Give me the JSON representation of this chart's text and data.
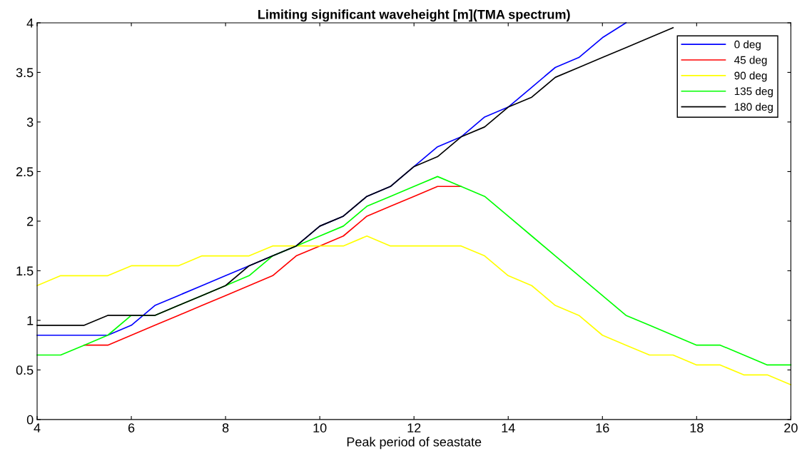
{
  "chart_data": {
    "type": "line",
    "title": "Limiting significant waveheight [m](TMA spectrum)",
    "xlabel": "Peak period of seastate",
    "x": [
      4,
      4.5,
      5,
      5.5,
      6,
      6.5,
      7,
      7.5,
      8,
      8.5,
      9,
      9.5,
      10,
      10.5,
      11,
      11.5,
      12,
      12.5,
      13,
      13.5,
      14,
      14.5,
      15,
      15.5,
      16,
      16.5,
      17,
      17.5,
      18,
      18.5,
      19,
      19.5,
      20
    ],
    "series": [
      {
        "name": "0 deg",
        "color": "#0000ff",
        "values": [
          0.85,
          0.85,
          0.85,
          0.85,
          0.95,
          1.15,
          1.25,
          1.35,
          1.45,
          1.55,
          1.65,
          1.75,
          1.95,
          2.05,
          2.25,
          2.35,
          2.55,
          2.75,
          2.85,
          3.05,
          3.15,
          3.35,
          3.55,
          3.65,
          3.85,
          4.0,
          null,
          null,
          null,
          null,
          null,
          null,
          null
        ]
      },
      {
        "name": "45 deg",
        "color": "#ff0000",
        "values": [
          null,
          null,
          0.75,
          0.75,
          0.85,
          0.95,
          1.05,
          1.15,
          1.25,
          1.35,
          1.45,
          1.65,
          1.75,
          1.85,
          2.05,
          2.15,
          2.25,
          2.35,
          2.35,
          null,
          null,
          null,
          null,
          null,
          null,
          null,
          null,
          null,
          null,
          null,
          null,
          null,
          null
        ]
      },
      {
        "name": "90 deg",
        "color": "#ffff00",
        "values": [
          1.35,
          1.45,
          1.45,
          1.45,
          1.55,
          1.55,
          1.55,
          1.65,
          1.65,
          1.65,
          1.75,
          1.75,
          1.75,
          1.75,
          1.85,
          1.75,
          1.75,
          1.75,
          1.75,
          1.65,
          1.45,
          1.35,
          1.15,
          1.05,
          0.85,
          0.75,
          0.65,
          0.65,
          0.55,
          0.55,
          0.45,
          0.45,
          0.35
        ]
      },
      {
        "name": "135 deg",
        "color": "#00ff00",
        "values": [
          0.65,
          0.65,
          0.75,
          0.85,
          1.05,
          1.05,
          1.15,
          1.25,
          1.35,
          1.45,
          1.65,
          1.75,
          1.85,
          1.95,
          2.15,
          2.25,
          2.35,
          2.45,
          2.35,
          2.25,
          2.05,
          1.85,
          1.65,
          1.45,
          1.25,
          1.05,
          0.95,
          0.85,
          0.75,
          0.75,
          0.65,
          0.55,
          0.55
        ]
      },
      {
        "name": "180 deg",
        "color": "#000000",
        "values": [
          0.95,
          0.95,
          0.95,
          1.05,
          1.05,
          1.05,
          1.15,
          1.25,
          1.35,
          1.55,
          1.65,
          1.75,
          1.95,
          2.05,
          2.25,
          2.35,
          2.55,
          2.65,
          2.85,
          2.95,
          3.15,
          3.25,
          3.45,
          3.55,
          3.65,
          3.75,
          3.85,
          3.95,
          null,
          null,
          null,
          null,
          null
        ]
      }
    ],
    "xlim": [
      4,
      20
    ],
    "xticks": [
      4,
      6,
      8,
      10,
      12,
      14,
      16,
      18,
      20
    ],
    "ylim": [
      0,
      4
    ],
    "yticks": [
      0,
      0.5,
      1,
      1.5,
      2,
      2.5,
      3,
      3.5,
      4
    ],
    "legend": "top right",
    "grid": false,
    "marker": "none",
    "line_style": "solid"
  }
}
